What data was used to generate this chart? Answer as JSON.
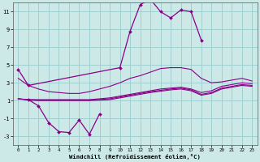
{
  "x": [
    0,
    1,
    2,
    3,
    4,
    5,
    6,
    7,
    8,
    9,
    10,
    11,
    12,
    13,
    14,
    15,
    16,
    17,
    18,
    19,
    20,
    21,
    22,
    23
  ],
  "line_peak": [
    4.5,
    2.7,
    null,
    null,
    null,
    null,
    null,
    null,
    null,
    null,
    4.7,
    8.8,
    11.8,
    12.4,
    11.0,
    10.3,
    11.2,
    11.0,
    7.8,
    null,
    null,
    null,
    null,
    null
  ],
  "line_upper": [
    3.5,
    2.7,
    2.3,
    2.0,
    1.9,
    1.8,
    1.8,
    2.0,
    2.3,
    2.6,
    3.0,
    3.5,
    3.8,
    4.2,
    4.6,
    4.7,
    4.7,
    4.5,
    3.5,
    3.0,
    3.1,
    3.3,
    3.5,
    3.2
  ],
  "line_mid1": [
    1.2,
    1.1,
    1.1,
    1.1,
    1.1,
    1.1,
    1.1,
    1.1,
    1.2,
    1.3,
    1.5,
    1.7,
    1.9,
    2.1,
    2.3,
    2.4,
    2.5,
    2.3,
    1.9,
    2.1,
    2.6,
    2.8,
    3.0,
    2.9
  ],
  "line_mid2": [
    1.2,
    1.1,
    1.05,
    1.05,
    1.05,
    1.05,
    1.05,
    1.05,
    1.1,
    1.2,
    1.4,
    1.6,
    1.8,
    2.0,
    2.15,
    2.3,
    2.4,
    2.2,
    1.7,
    1.9,
    2.4,
    2.6,
    2.8,
    2.7
  ],
  "line_low_mid": [
    1.2,
    1.05,
    1.0,
    1.0,
    1.0,
    1.0,
    1.0,
    1.0,
    1.05,
    1.1,
    1.3,
    1.5,
    1.7,
    1.9,
    2.05,
    2.2,
    2.3,
    2.1,
    1.6,
    1.8,
    2.3,
    2.5,
    2.7,
    2.6
  ],
  "line_dip": [
    null,
    1.1,
    0.4,
    -1.5,
    -2.5,
    -2.6,
    -1.2,
    -2.8,
    -0.5,
    null,
    null,
    null,
    null,
    null,
    null,
    null,
    null,
    null,
    null,
    null,
    null,
    null,
    null,
    null
  ],
  "background_color": "#cce9e8",
  "line_color": "#880088",
  "grid_color": "#99cccc",
  "xlabel": "Windchill (Refroidissement éolien,°C)",
  "ylim": [
    -4,
    12
  ],
  "xlim": [
    -0.5,
    23.5
  ],
  "yticks": [
    -3,
    -1,
    1,
    3,
    5,
    7,
    9,
    11
  ],
  "xticks": [
    0,
    1,
    2,
    3,
    4,
    5,
    6,
    7,
    8,
    9,
    10,
    11,
    12,
    13,
    14,
    15,
    16,
    17,
    18,
    19,
    20,
    21,
    22,
    23
  ]
}
